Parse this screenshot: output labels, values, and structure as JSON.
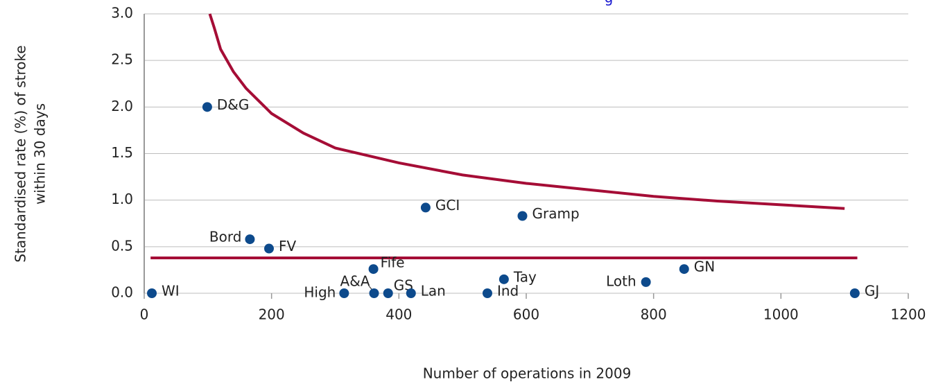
{
  "chart_data": {
    "type": "scatter",
    "title": "g",
    "xlabel": "Number of operations in 2009",
    "ylabel": [
      "Standardised rate (%) of stroke",
      "within 30 days"
    ],
    "xlim": [
      0,
      1200
    ],
    "ylim": [
      0,
      3
    ],
    "xticks": [
      0,
      200,
      400,
      600,
      800,
      1000,
      1200
    ],
    "yticks": [
      {
        "value": 0,
        "label": "0.0"
      },
      {
        "value": 0.5,
        "label": "0.5"
      },
      {
        "value": 1,
        "label": "1.0"
      },
      {
        "value": 1.5,
        "label": "1.5"
      },
      {
        "value": 2,
        "label": "2.0"
      },
      {
        "value": 2.5,
        "label": "2.5"
      },
      {
        "value": 3,
        "label": "3.0"
      }
    ],
    "grid": true,
    "points": {
      "color": "#0d4a8c",
      "labels": [
        "WI",
        "D&G",
        "Bord",
        "FV",
        "Fife",
        "High",
        "A&A",
        "GS",
        "Lan",
        "GCI",
        "Ind",
        "Tay",
        "Gramp",
        "Loth",
        "GN",
        "GJ"
      ],
      "x": [
        12,
        99,
        166,
        196,
        360,
        314,
        361,
        383,
        419,
        442,
        539,
        565,
        594,
        788,
        848,
        1116
      ],
      "values": [
        0,
        2.0,
        0.58,
        0.48,
        0.26,
        0,
        0,
        0,
        0,
        0.92,
        0,
        0.15,
        0.83,
        0.12,
        0.26,
        0
      ]
    },
    "lines": [
      {
        "color": "#a50d36",
        "x": [
          103,
          110,
          120,
          140,
          160,
          200,
          250,
          300,
          400,
          500,
          600,
          700,
          800,
          900,
          1000,
          1100
        ],
        "values": [
          3.0,
          2.85,
          2.62,
          2.38,
          2.2,
          1.93,
          1.72,
          1.56,
          1.4,
          1.27,
          1.18,
          1.11,
          1.04,
          0.99,
          0.95,
          0.91
        ]
      },
      {
        "color": "#a50d36",
        "x": [
          10,
          1120
        ],
        "values": [
          0.38,
          0.38
        ]
      }
    ]
  }
}
